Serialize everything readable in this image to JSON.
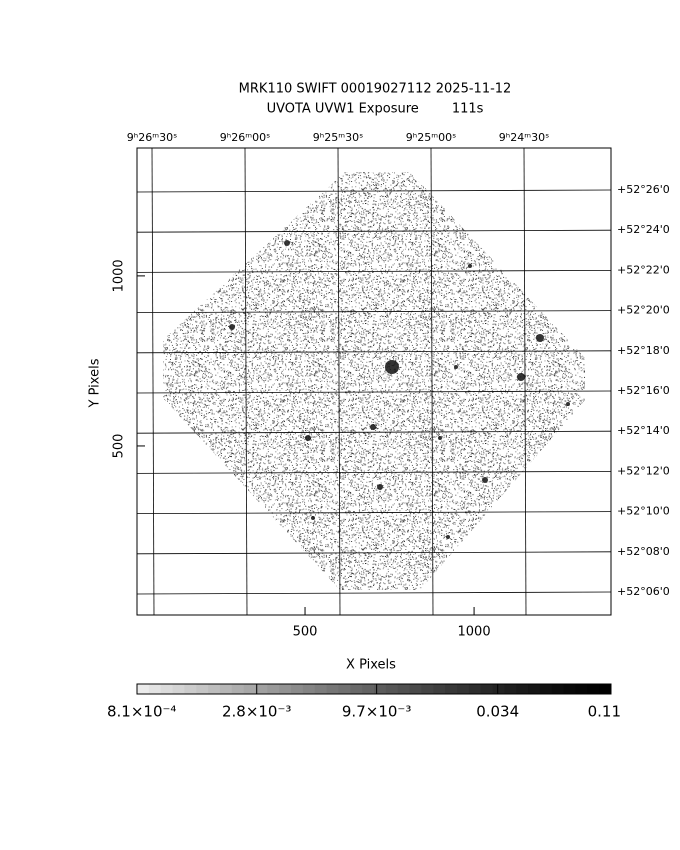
{
  "chart_data": {
    "type": "image",
    "title": "MRK110 SWIFT 00019027112 2025-11-12",
    "subtitle": "UVOTA UVW1 Exposure        111s",
    "x_label": "X Pixels",
    "y_label": "Y Pixels",
    "xlim": [
      3,
      1405
    ],
    "ylim": [
      3,
      1376
    ],
    "xticks": [
      500,
      1000
    ],
    "yticks": [
      500,
      1000
    ],
    "ra_labels": [
      "9ʰ26ᵐ30ˢ",
      "9ʰ26ᵐ00ˢ",
      "9ʰ25ᵐ30ˢ",
      "9ʰ25ᵐ00ˢ",
      "9ʰ24ᵐ30ˢ"
    ],
    "dec_labels": [
      "+52°26'0",
      "+52°24'0",
      "+52°22'0",
      "+52°20'0",
      "+52°18'0",
      "+52°16'0",
      "+52°14'0",
      "+52°12'0",
      "+52°10'0",
      "+52°08'0",
      "+52°06'0"
    ],
    "colorbar": {
      "scale": "log",
      "lim": [
        0.00081,
        0.11
      ],
      "ticks": [
        {
          "value": 0.00081,
          "label": "8.1×10⁻⁴"
        },
        {
          "value": 0.0028,
          "label": "2.8×10⁻³"
        },
        {
          "value": 0.0097,
          "label": "9.7×10⁻³"
        },
        {
          "value": 0.034,
          "label": "0.034"
        },
        {
          "value": 0.11,
          "label": "0.11"
        }
      ]
    }
  }
}
